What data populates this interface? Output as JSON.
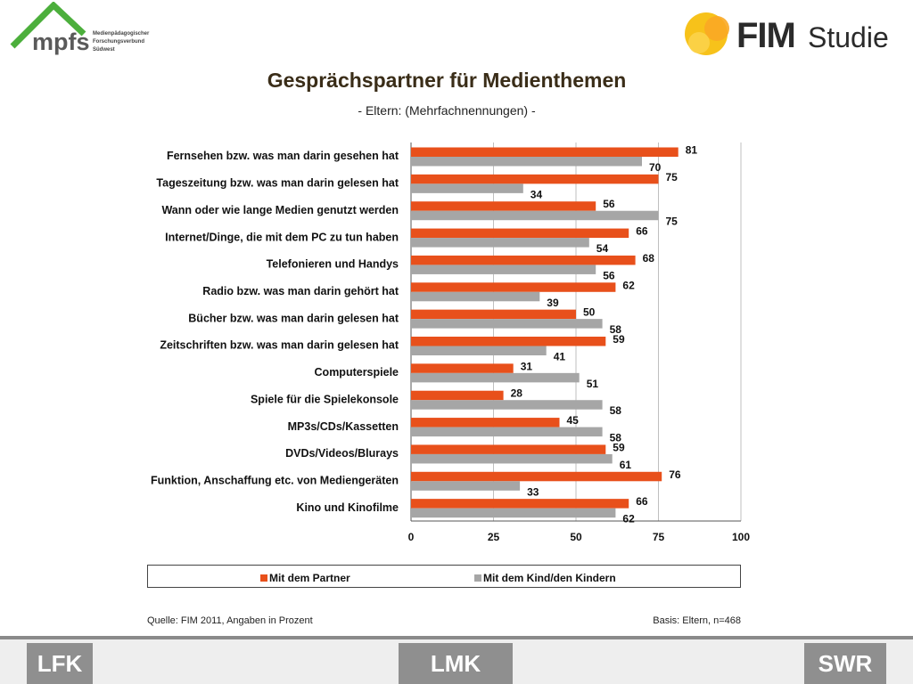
{
  "logos": {
    "mpfs": "mpfs",
    "mpfs_sub": [
      "Medienpädagogischer",
      "Forschungsverbund",
      "Südwest"
    ],
    "fim": "FIM",
    "fim_studie": "Studie",
    "lfk": "LFK",
    "lmk": "LMK",
    "swr": "SWR"
  },
  "colors": {
    "partner": "#e8501b",
    "kinder": "#a6a6a6",
    "title": "#3a2d18"
  },
  "chart_data": {
    "type": "bar",
    "orientation": "horizontal",
    "title": "Gesprächspartner für Medienthemen",
    "subtitle": "- Eltern: (Mehrfachnennungen) -",
    "categories": [
      "Fernsehen bzw. was man darin gesehen hat",
      "Tageszeitung bzw. was man darin gelesen hat",
      "Wann oder wie lange Medien genutzt werden",
      "Internet/Dinge, die mit dem PC zu tun haben",
      "Telefonieren und Handys",
      "Radio bzw. was man darin gehört hat",
      "Bücher bzw. was man darin gelesen hat",
      "Zeitschriften bzw. was man darin gelesen hat",
      "Computerspiele",
      "Spiele für die Spielekonsole",
      "MP3s/CDs/Kassetten",
      "DVDs/Videos/Blurays",
      "Funktion, Anschaffung etc. von Mediengeräten",
      "Kino und Kinofilme"
    ],
    "series": [
      {
        "name": "Mit dem Partner",
        "values": [
          81,
          75,
          56,
          66,
          68,
          62,
          50,
          59,
          31,
          28,
          45,
          59,
          76,
          66
        ]
      },
      {
        "name": "Mit dem Kind/den Kindern",
        "values": [
          70,
          34,
          75,
          54,
          56,
          39,
          58,
          41,
          51,
          58,
          58,
          61,
          33,
          62
        ]
      }
    ],
    "xlim": [
      0,
      100
    ],
    "xticks": [
      0,
      25,
      50,
      75,
      100
    ],
    "grid": true,
    "legend": "bottom"
  },
  "footer": {
    "source": "Quelle: FIM 2011, Angaben in Prozent",
    "basis": "Basis: Eltern, n=468"
  }
}
